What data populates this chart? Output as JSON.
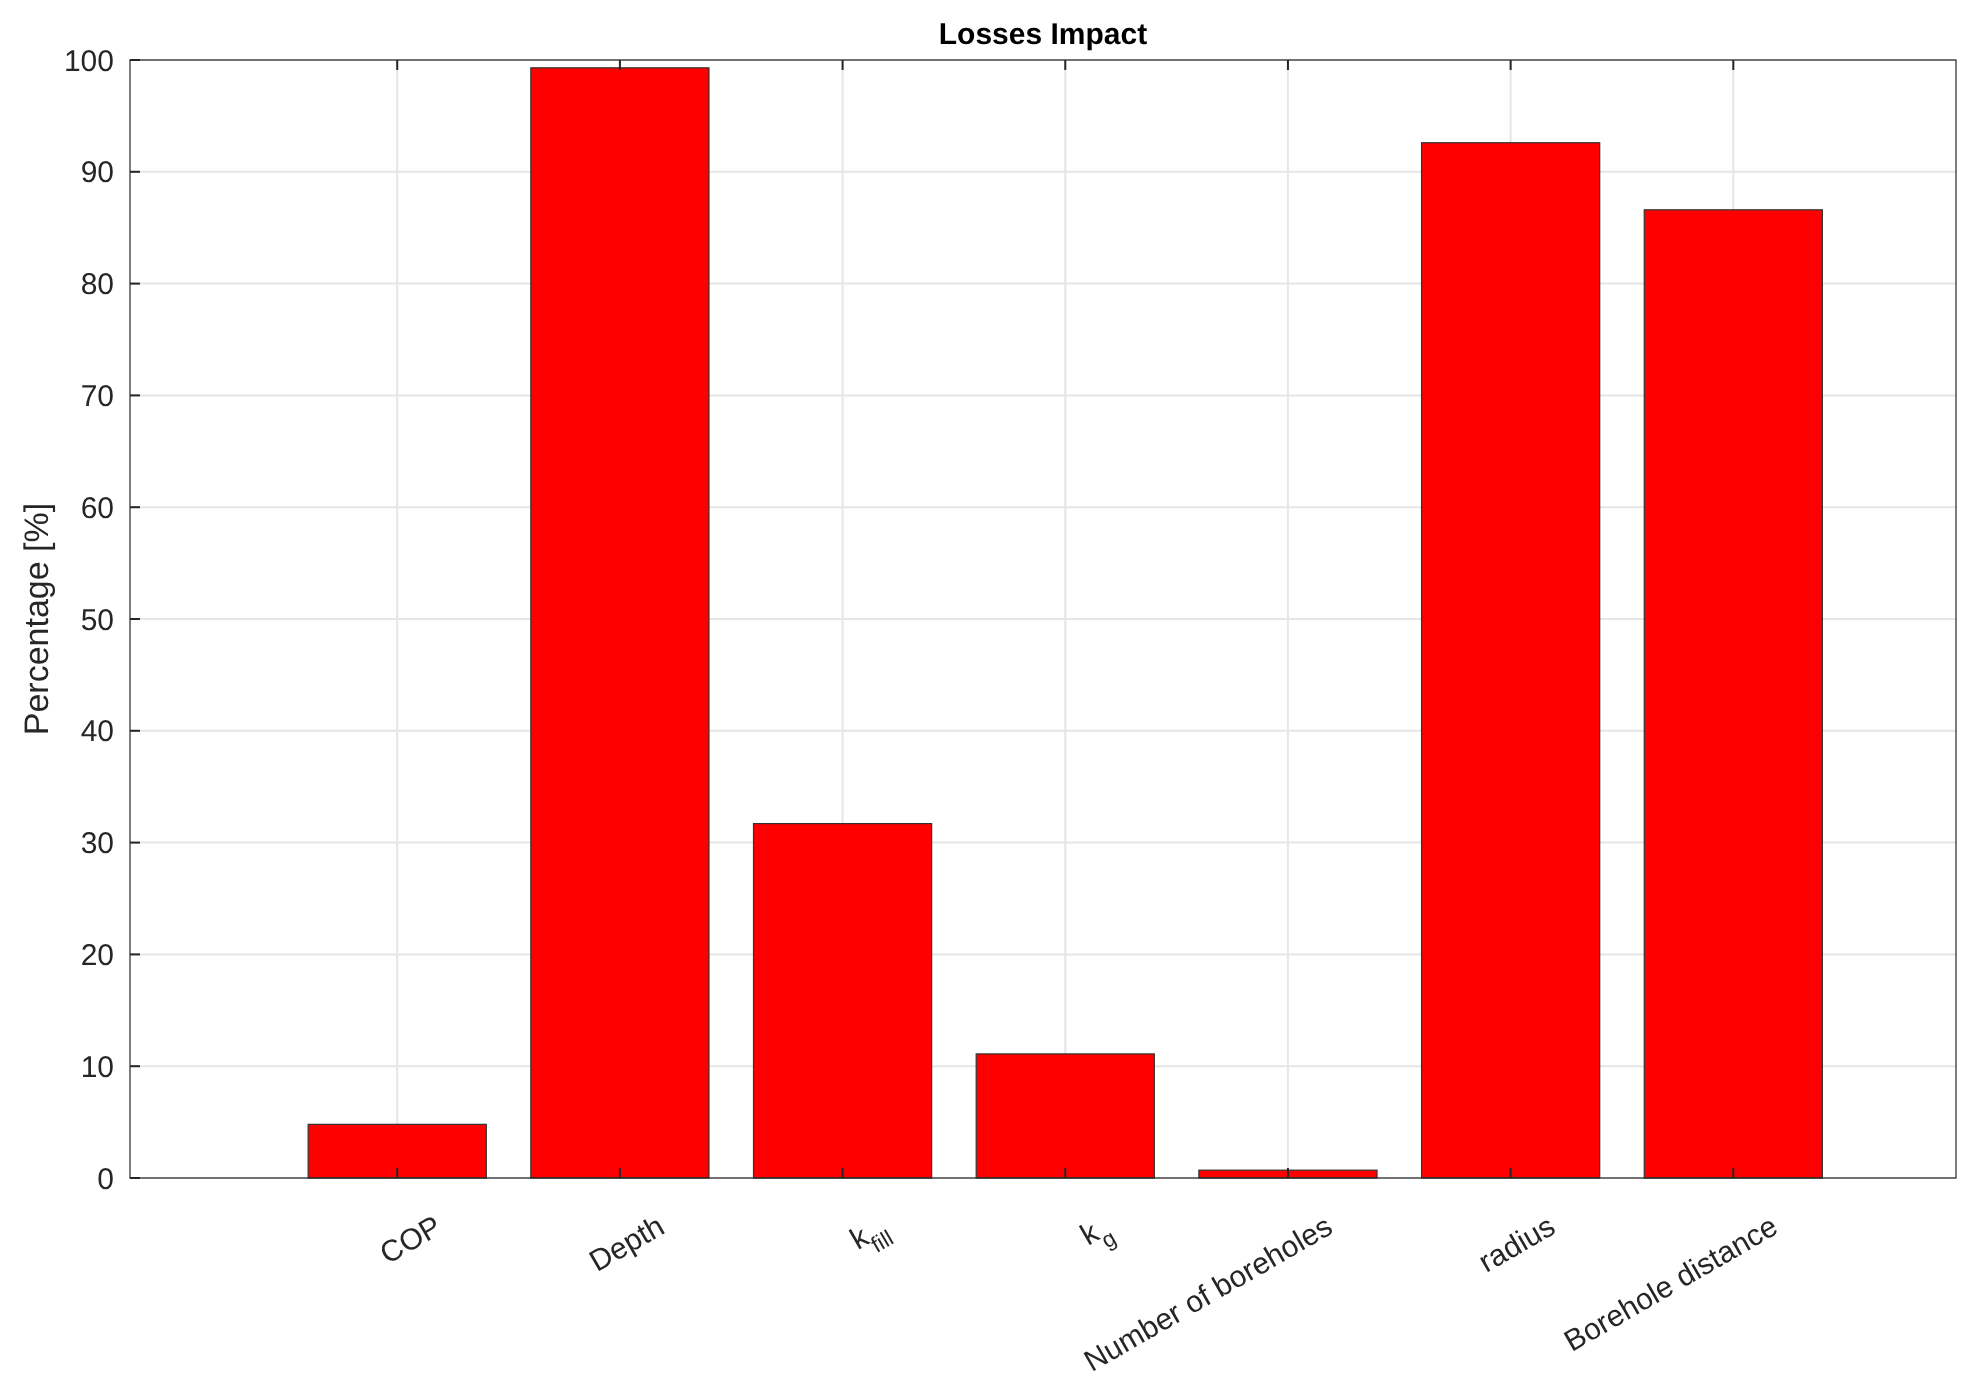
{
  "chart_data": {
    "type": "bar",
    "title": "Losses Impact",
    "ylabel": "Percentage [%]",
    "categories": [
      "COP",
      "Depth",
      "k$_{fill}$",
      "k$_{g}$",
      "Number of boreholes",
      "radius",
      "Borehole distance"
    ],
    "values": [
      4.8,
      99.3,
      31.7,
      11.1,
      0.7,
      92.6,
      86.6
    ],
    "color": "#ff0000",
    "ylim": [
      0,
      100
    ],
    "yticks": [
      0,
      10,
      20,
      30,
      40,
      50,
      60,
      70,
      80,
      90,
      100
    ],
    "grid": true
  }
}
